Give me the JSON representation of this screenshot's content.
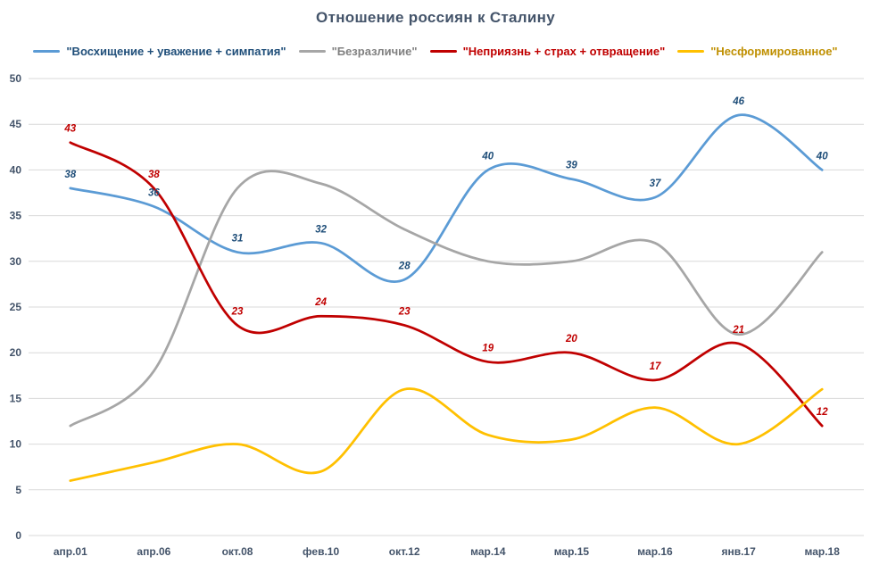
{
  "chart_data": {
    "type": "line",
    "title": "Отношение россиян к Сталину",
    "categories": [
      "апр.01",
      "апр.06",
      "окт.08",
      "фев.10",
      "окт.12",
      "мар.14",
      "мар.15",
      "мар.16",
      "янв.17",
      "мар.18"
    ],
    "y_ticks": [
      0,
      5,
      10,
      15,
      20,
      25,
      30,
      35,
      40,
      45,
      50
    ],
    "ylim": [
      0,
      50
    ],
    "xlabel": "",
    "ylabel": "",
    "grid": "horizontal",
    "legend_position": "top",
    "smooth_lines": true,
    "background_color": "#FFFFFF",
    "grid_color": "#D9D9D9",
    "axis_text_color": "#44546A",
    "title_color": "#44546A",
    "series": [
      {
        "key": "admiration-respect-sympathy",
        "name": "\"Восхищение + уважение + симпатия\"",
        "color": "#5B9BD5",
        "label_color": "#1F4E79",
        "show_point_labels": true,
        "values": [
          38,
          36,
          31,
          32,
          28,
          40,
          39,
          37,
          46,
          40
        ]
      },
      {
        "key": "indifference",
        "name": "\"Безразличие\"",
        "color": "#A6A6A6",
        "label_color": "#808080",
        "show_point_labels": false,
        "values": [
          12,
          18,
          38,
          38.5,
          33.5,
          30,
          30,
          32,
          22,
          31
        ]
      },
      {
        "key": "aversion-fear-disgust",
        "name": "\"Неприязнь + страх + отвращение\"",
        "color": "#C00000",
        "label_color": "#C00000",
        "show_point_labels": true,
        "values": [
          43,
          38,
          23,
          24,
          23,
          19,
          20,
          17,
          21,
          12
        ]
      },
      {
        "key": "unformed",
        "name": "\"Несформированное\"",
        "color": "#FFC000",
        "label_color": "#BF8F00",
        "show_point_labels": false,
        "values": [
          6,
          8,
          10,
          7,
          16,
          11,
          10.5,
          14,
          10,
          16
        ]
      }
    ]
  }
}
